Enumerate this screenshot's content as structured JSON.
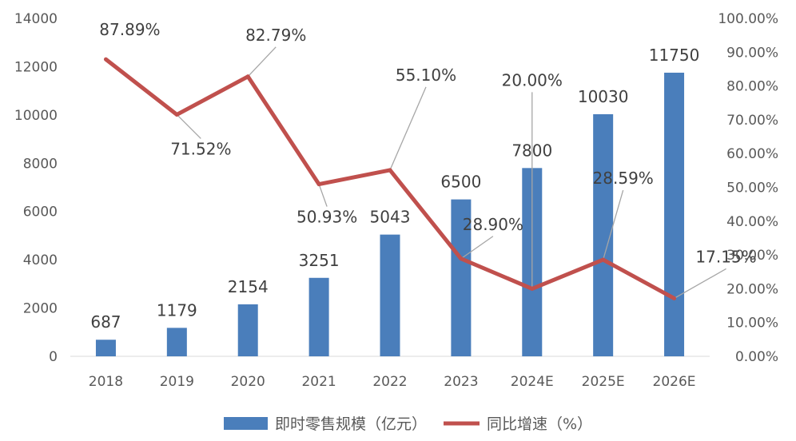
{
  "chart_data": {
    "type": "bar",
    "categories": [
      "2018",
      "2019",
      "2020",
      "2021",
      "2022",
      "2023",
      "2024E",
      "2025E",
      "2026E"
    ],
    "series": [
      {
        "name": "即时零售规模（亿元）",
        "type": "bar",
        "axis": "left",
        "color": "#4a7ebb",
        "values": [
          687,
          1179,
          2154,
          3251,
          5043,
          6500,
          7800,
          10030,
          11750
        ],
        "labels": [
          "687",
          "1179",
          "2154",
          "3251",
          "5043",
          "6500",
          "7800",
          "10030",
          "11750"
        ]
      },
      {
        "name": "同比增速（%）",
        "type": "line",
        "axis": "right",
        "color": "#c0504d",
        "values": [
          87.89,
          71.52,
          82.79,
          50.93,
          55.1,
          28.9,
          20.0,
          28.59,
          17.15
        ],
        "labels": [
          "87.89%",
          "71.52%",
          "82.79%",
          "50.93%",
          "55.10%",
          "28.90%",
          "20.00%",
          "28.59%",
          "17.15%"
        ]
      }
    ],
    "y_left": {
      "min": 0,
      "max": 14000,
      "ticks": [
        0,
        2000,
        4000,
        6000,
        8000,
        10000,
        12000,
        14000
      ],
      "tick_labels": [
        "0",
        "2000",
        "4000",
        "6000",
        "8000",
        "10000",
        "12000",
        "14000"
      ]
    },
    "y_right": {
      "min": 0,
      "max": 100,
      "ticks": [
        0,
        10,
        20,
        30,
        40,
        50,
        60,
        70,
        80,
        90,
        100
      ],
      "tick_labels": [
        "0.00%",
        "10.00%",
        "20.00%",
        "30.00%",
        "40.00%",
        "50.00%",
        "60.00%",
        "70.00%",
        "80.00%",
        "90.00%",
        "100.00%"
      ]
    },
    "grid": false,
    "legend": "bottom-center",
    "title": "",
    "xlabel": "",
    "ylabel": ""
  }
}
